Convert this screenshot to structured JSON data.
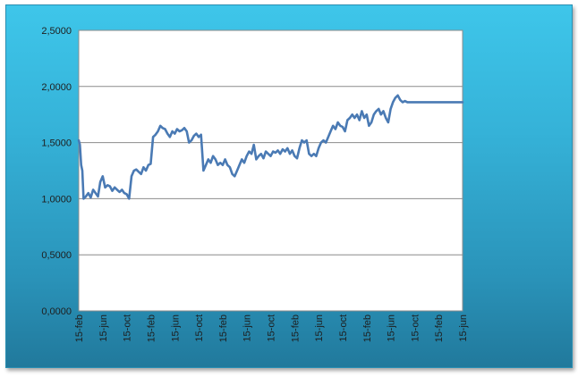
{
  "chart_data": {
    "type": "line",
    "title": "",
    "xlabel": "",
    "ylabel": "",
    "ylim": [
      0,
      2.5
    ],
    "grid": true,
    "legend": "none",
    "y_ticks": [
      "0,0000",
      "0,5000",
      "1,0000",
      "1,5000",
      "2,0000",
      "2,5000"
    ],
    "x_ticks": [
      "15-feb",
      "15-jun",
      "15-oct",
      "15-feb",
      "15-jun",
      "15-oct",
      "15-feb",
      "15-jun",
      "15-oct",
      "15-feb",
      "15-jun",
      "15-oct",
      "15-feb",
      "15-jun",
      "15-oct",
      "15-feb",
      "15-jun"
    ],
    "colors": {
      "line": "#4a7ab4",
      "plot_bg": "#ffffff",
      "grid": "#8c8c8c"
    },
    "series": [
      {
        "x": [
          0,
          0.05,
          0.1,
          0.15,
          0.2,
          0.3,
          0.4,
          0.5,
          0.6,
          0.7,
          0.8,
          0.9,
          1.0,
          1.1,
          1.2,
          1.3,
          1.4,
          1.5,
          1.6,
          1.7,
          1.8,
          1.9,
          2.0,
          2.1,
          2.2,
          2.3,
          2.4,
          2.5,
          2.6,
          2.7,
          2.8,
          2.9,
          3.0,
          3.1,
          3.2,
          3.3,
          3.4,
          3.5,
          3.6,
          3.7,
          3.8,
          3.9,
          4.0,
          4.1,
          4.2,
          4.3,
          4.4,
          4.5,
          4.6,
          4.7,
          4.8,
          4.9,
          5.0,
          5.1,
          5.2,
          5.3,
          5.4,
          5.5,
          5.6,
          5.7,
          5.8,
          5.9,
          6.0,
          6.1,
          6.2,
          6.3,
          6.4,
          6.5,
          6.6,
          6.7,
          6.8,
          6.9,
          7.0,
          7.1,
          7.2,
          7.3,
          7.4,
          7.5,
          7.6,
          7.7,
          7.8,
          7.9,
          8.0,
          8.1,
          8.2,
          8.3,
          8.4,
          8.5,
          8.6,
          8.7,
          8.8,
          8.9,
          9.0,
          9.1,
          9.2,
          9.3,
          9.4,
          9.5,
          9.6,
          9.7,
          9.8,
          9.9,
          10.0,
          10.1,
          10.2,
          10.3,
          10.4,
          10.5,
          10.6,
          10.7,
          10.8,
          10.9,
          11.0,
          11.1,
          11.2,
          11.3,
          11.4,
          11.5,
          11.6,
          11.7,
          11.8,
          11.9,
          12.0,
          12.1,
          12.2,
          12.3,
          12.4,
          12.5,
          12.6,
          12.7,
          12.8,
          12.9,
          13.0,
          13.1,
          13.2,
          13.3,
          13.4,
          13.5,
          13.6,
          13.7,
          13.8,
          13.9,
          14.0,
          14.1,
          14.2,
          14.3,
          14.4,
          14.5,
          14.6,
          14.7,
          14.8,
          14.9,
          15.0,
          15.1,
          15.2,
          15.3,
          15.4,
          15.5,
          15.6,
          15.7,
          15.8,
          15.9,
          16.0
        ],
        "values": [
          1.52,
          1.48,
          1.3,
          1.25,
          1.0,
          1.02,
          1.05,
          1.01,
          1.08,
          1.05,
          1.02,
          1.15,
          1.2,
          1.1,
          1.12,
          1.11,
          1.07,
          1.1,
          1.08,
          1.06,
          1.08,
          1.05,
          1.04,
          1.0,
          1.2,
          1.25,
          1.26,
          1.24,
          1.22,
          1.28,
          1.25,
          1.3,
          1.31,
          1.55,
          1.57,
          1.6,
          1.65,
          1.63,
          1.62,
          1.58,
          1.55,
          1.6,
          1.58,
          1.62,
          1.6,
          1.61,
          1.63,
          1.6,
          1.5,
          1.52,
          1.56,
          1.58,
          1.55,
          1.57,
          1.25,
          1.3,
          1.35,
          1.32,
          1.38,
          1.35,
          1.3,
          1.32,
          1.3,
          1.35,
          1.3,
          1.28,
          1.22,
          1.2,
          1.25,
          1.3,
          1.35,
          1.32,
          1.38,
          1.42,
          1.4,
          1.48,
          1.35,
          1.38,
          1.4,
          1.36,
          1.42,
          1.4,
          1.38,
          1.42,
          1.41,
          1.43,
          1.4,
          1.44,
          1.42,
          1.45,
          1.4,
          1.43,
          1.38,
          1.36,
          1.45,
          1.52,
          1.5,
          1.52,
          1.4,
          1.38,
          1.4,
          1.38,
          1.45,
          1.5,
          1.52,
          1.5,
          1.55,
          1.6,
          1.65,
          1.62,
          1.68,
          1.65,
          1.64,
          1.6,
          1.7,
          1.72,
          1.75,
          1.72,
          1.75,
          1.7,
          1.78,
          1.72,
          1.75,
          1.65,
          1.68,
          1.75,
          1.78,
          1.8,
          1.75,
          1.78,
          1.72,
          1.68,
          1.8,
          1.86,
          1.9,
          1.92,
          1.88,
          1.86,
          1.87,
          1.86,
          1.86,
          1.86,
          1.86,
          1.86,
          1.86,
          1.86,
          1.86,
          1.86,
          1.86,
          1.86,
          1.86,
          1.86,
          1.86,
          1.86,
          1.86,
          1.86,
          1.86,
          1.86,
          1.86,
          1.86,
          1.86,
          1.86,
          1.86
        ]
      }
    ]
  }
}
